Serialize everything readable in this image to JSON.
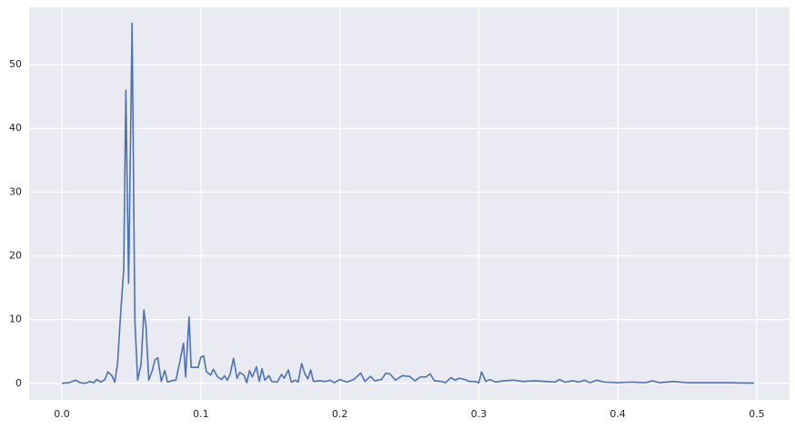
{
  "chart_data": {
    "type": "line",
    "x": [
      0,
      0.005,
      0.01,
      0.013,
      0.017,
      0.02,
      0.023,
      0.025,
      0.028,
      0.031,
      0.033,
      0.036,
      0.038,
      0.04,
      0.042,
      0.0445,
      0.046,
      0.048,
      0.0505,
      0.0525,
      0.0545,
      0.057,
      0.059,
      0.0605,
      0.0625,
      0.065,
      0.067,
      0.069,
      0.0715,
      0.074,
      0.076,
      0.079,
      0.082,
      0.084,
      0.0875,
      0.089,
      0.0915,
      0.093,
      0.095,
      0.098,
      0.1,
      0.102,
      0.104,
      0.107,
      0.109,
      0.112,
      0.115,
      0.117,
      0.119,
      0.121,
      0.1235,
      0.126,
      0.128,
      0.131,
      0.133,
      0.135,
      0.137,
      0.14,
      0.142,
      0.144,
      0.146,
      0.149,
      0.151,
      0.155,
      0.158,
      0.16,
      0.163,
      0.165,
      0.168,
      0.17,
      0.1725,
      0.175,
      0.177,
      0.179,
      0.181,
      0.185,
      0.19,
      0.193,
      0.196,
      0.2,
      0.205,
      0.21,
      0.215,
      0.218,
      0.222,
      0.225,
      0.23,
      0.233,
      0.236,
      0.24,
      0.245,
      0.25,
      0.254,
      0.258,
      0.262,
      0.265,
      0.268,
      0.273,
      0.276,
      0.28,
      0.283,
      0.286,
      0.29,
      0.293,
      0.297,
      0.3,
      0.302,
      0.305,
      0.308,
      0.312,
      0.318,
      0.325,
      0.332,
      0.34,
      0.348,
      0.355,
      0.358,
      0.362,
      0.368,
      0.372,
      0.376,
      0.38,
      0.385,
      0.39,
      0.4,
      0.41,
      0.42,
      0.425,
      0.43,
      0.44,
      0.45,
      0.46,
      0.47,
      0.48,
      0.49,
      0.498
    ],
    "series": [
      {
        "color": "#4c72b0",
        "values": [
          0,
          0.1,
          0.5,
          0.1,
          0.0,
          0.3,
          0.1,
          0.6,
          0.2,
          0.6,
          1.8,
          1.2,
          0.2,
          3.0,
          10,
          18,
          46,
          15.7,
          56.5,
          10,
          0.5,
          3,
          11.5,
          9,
          0.5,
          2,
          3.7,
          4,
          0.3,
          2,
          0.2,
          0.4,
          0.5,
          2.5,
          6.3,
          1,
          10.4,
          2.5,
          2.5,
          2.5,
          4.1,
          4.3,
          1.8,
          1.3,
          2.2,
          1.0,
          0.6,
          1.2,
          0.5,
          1.4,
          3.9,
          0.8,
          1.7,
          1.3,
          0.1,
          2,
          1,
          2.6,
          0.3,
          2.3,
          0.5,
          1.2,
          0.3,
          0.2,
          1.4,
          0.8,
          2.1,
          0.2,
          0.5,
          0.2,
          3.1,
          1.4,
          0.7,
          2.1,
          0.3,
          0.4,
          0.3,
          0.5,
          0.1,
          0.6,
          0.2,
          0.6,
          1.6,
          0.3,
          1.1,
          0.4,
          0.6,
          1.6,
          1.5,
          0.5,
          1.2,
          1.1,
          0.4,
          1.0,
          1.0,
          1.5,
          0.4,
          0.3,
          0.1,
          0.9,
          0.5,
          0.8,
          0.6,
          0.3,
          0.3,
          0.1,
          1.8,
          0.3,
          0.6,
          0.2,
          0.4,
          0.5,
          0.3,
          0.4,
          0.3,
          0.2,
          0.6,
          0.2,
          0.4,
          0.2,
          0.5,
          0.1,
          0.5,
          0.2,
          0.1,
          0.2,
          0.1,
          0.4,
          0.1,
          0.3,
          0.1,
          0.1,
          0.1,
          0.1,
          0.05,
          0.05
        ]
      }
    ],
    "xlim": [
      -0.0236,
      0.5236
    ],
    "ylim": [
      -2.6,
      59
    ],
    "xticks": [
      {
        "value": 0,
        "label": "0.0"
      },
      0.1,
      0.2,
      0.3,
      0.4,
      0.5
    ],
    "yticks": [
      0,
      10,
      20,
      30,
      40,
      50
    ],
    "grid": true
  }
}
